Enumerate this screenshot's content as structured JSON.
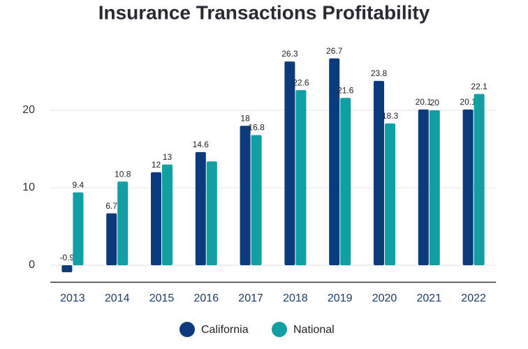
{
  "chart_data": {
    "type": "bar",
    "title": "Insurance Transactions Profitability",
    "categories": [
      "2013",
      "2014",
      "2015",
      "2016",
      "2017",
      "2018",
      "2019",
      "2020",
      "2021",
      "2022"
    ],
    "series": [
      {
        "name": "California",
        "color": "#0b3b7c",
        "values": [
          -0.9,
          6.7,
          12,
          14.6,
          18,
          26.3,
          26.7,
          23.8,
          20.1,
          20.1
        ]
      },
      {
        "name": "National",
        "color": "#119fa4",
        "values": [
          9.4,
          10.8,
          13,
          13.4,
          16.8,
          22.6,
          21.6,
          18.3,
          20,
          22.1
        ],
        "value_labels": [
          "9.4",
          "10.8",
          "13",
          null,
          "16.8",
          "22.6",
          "21.6",
          "18.3",
          "20",
          "22.1"
        ]
      }
    ],
    "ylim": [
      -2.2,
      30
    ],
    "yticks": [
      0,
      10,
      20
    ],
    "grid": true
  }
}
